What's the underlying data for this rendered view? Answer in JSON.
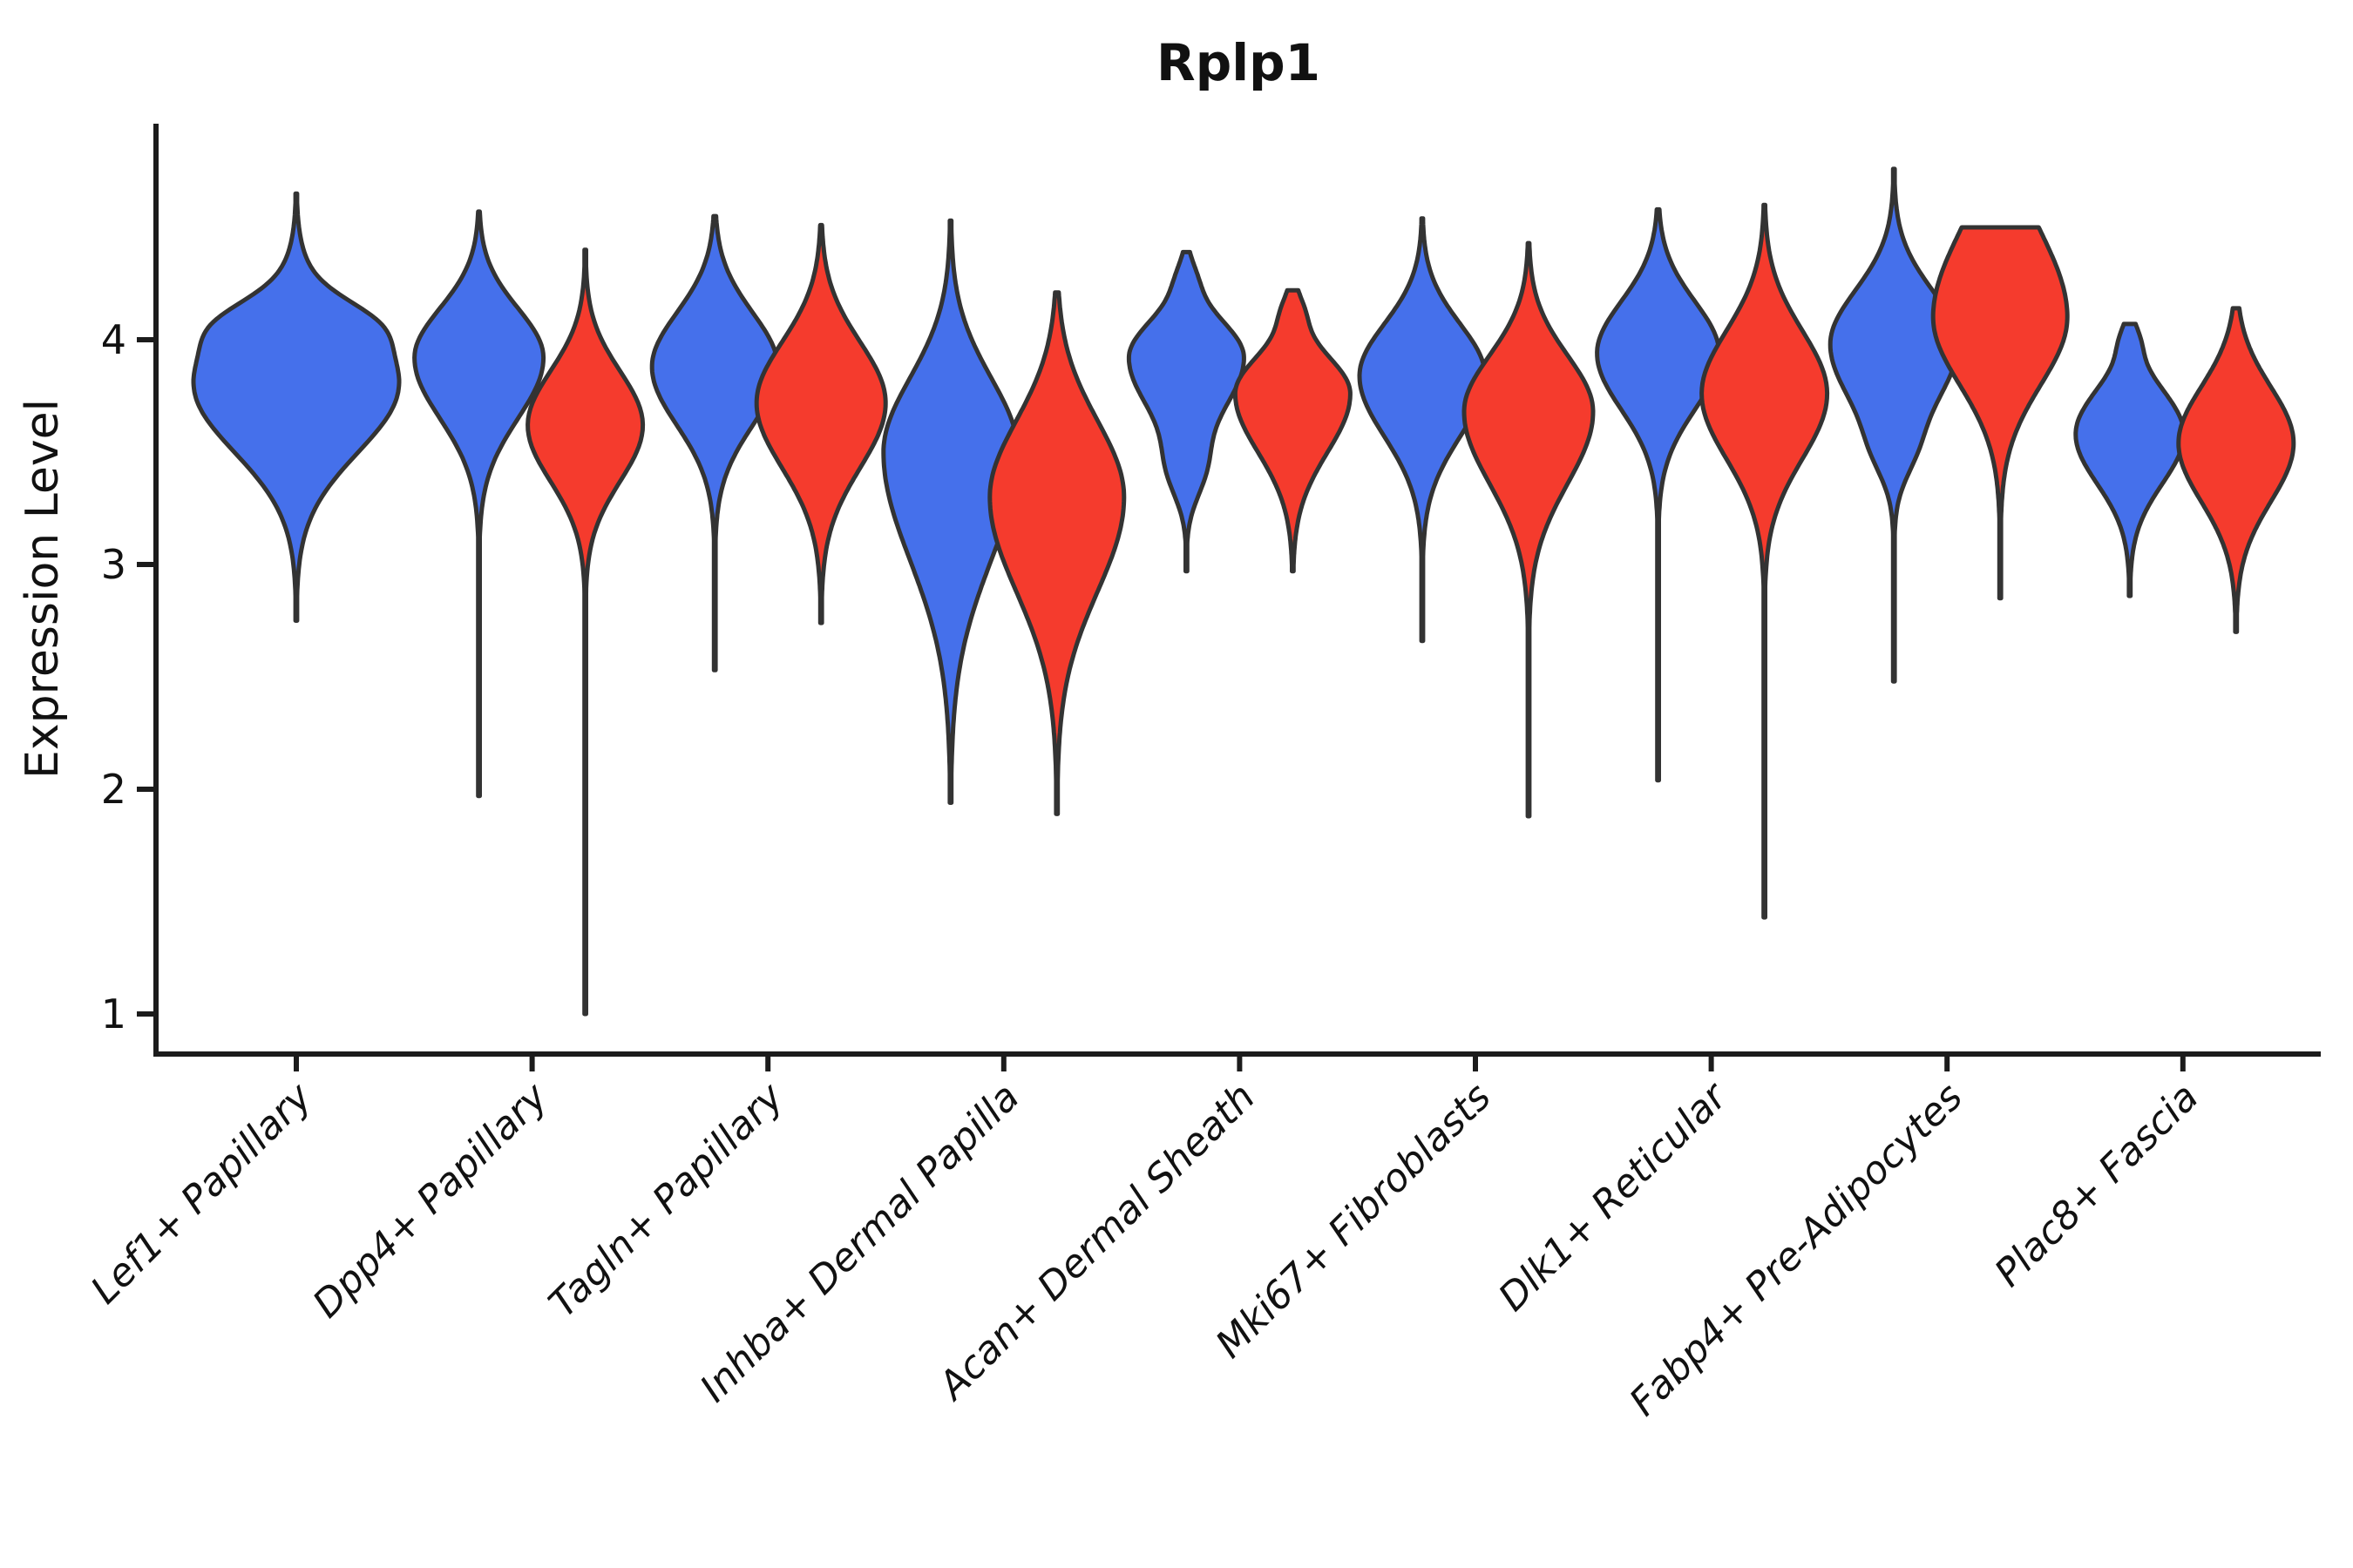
{
  "title": "Rplp1",
  "y_axis": {
    "label": "Expression Level",
    "ticks": [
      1,
      2,
      3,
      4
    ]
  },
  "x_axis": {
    "categories": [
      "Lef1+ Papillary",
      "Dpp4+ Papillary",
      "Tagln+ Papillary",
      "Inhba+ Dermal Papilla",
      "Acan+ Dermal Sheath",
      "Mki67+ Fibroblasts",
      "Dlk1+ Reticular",
      "Fabp4+ Pre-Adipocytes",
      "Plac8+ Fascia"
    ]
  },
  "colors": {
    "blue": "#4570EB",
    "red": "#F53B2D",
    "outline": "#333333",
    "axis": "#1c1c1c",
    "text": "#111111",
    "background": "#FFFFFF"
  },
  "chart_data": {
    "type": "violin",
    "title": "Rplp1",
    "ylabel": "Expression Level",
    "xlabel": "",
    "y_ticks": [
      1,
      2,
      3,
      4
    ],
    "ylim": [
      0.8,
      4.95
    ],
    "grid": false,
    "legend": "none",
    "categories": [
      "Lef1+ Papillary",
      "Dpp4+ Papillary",
      "Tagln+ Papillary",
      "Inhba+ Dermal Papilla",
      "Acan+ Dermal Sheath",
      "Mki67+ Fibroblasts",
      "Dlk1+ Reticular",
      "Fabp4+ Pre-Adipocytes",
      "Plac8+ Fascia"
    ],
    "series": [
      {
        "key": "blue",
        "color": "#4570EB"
      },
      {
        "key": "red",
        "color": "#F53B2D"
      }
    ],
    "violins": [
      {
        "c": 0,
        "s": "blue",
        "full": true,
        "min": 2.75,
        "max": 4.65,
        "peak": 3.8,
        "spread_lo": 0.3,
        "spread_hi": 0.26,
        "halfwidth": 118,
        "bumps": [
          [
            4.08,
            0.1,
            0.25
          ]
        ]
      },
      {
        "c": 1,
        "s": "blue",
        "full": false,
        "min": 1.97,
        "max": 4.57,
        "peak": 3.92,
        "spread_lo": 0.27,
        "spread_hi": 0.22,
        "halfwidth": 74,
        "bumps": []
      },
      {
        "c": 1,
        "s": "red",
        "full": false,
        "min": 1.0,
        "max": 4.4,
        "peak": 3.62,
        "spread_lo": 0.25,
        "spread_hi": 0.24,
        "halfwidth": 66,
        "bumps": []
      },
      {
        "c": 2,
        "s": "blue",
        "full": false,
        "min": 2.53,
        "max": 4.55,
        "peak": 3.88,
        "spread_lo": 0.26,
        "spread_hi": 0.24,
        "halfwidth": 72,
        "bumps": []
      },
      {
        "c": 2,
        "s": "red",
        "full": false,
        "min": 2.74,
        "max": 4.51,
        "peak": 3.72,
        "spread_lo": 0.29,
        "spread_hi": 0.27,
        "halfwidth": 74,
        "bumps": []
      },
      {
        "c": 3,
        "s": "blue",
        "full": false,
        "min": 1.94,
        "max": 4.53,
        "peak": 3.5,
        "spread_lo": 0.48,
        "spread_hi": 0.33,
        "halfwidth": 77,
        "bumps": []
      },
      {
        "c": 3,
        "s": "red",
        "full": false,
        "min": 1.89,
        "max": 4.21,
        "peak": 3.3,
        "spread_lo": 0.42,
        "spread_hi": 0.34,
        "halfwidth": 77,
        "bumps": []
      },
      {
        "c": 4,
        "s": "blue",
        "full": false,
        "min": 2.97,
        "max": 4.39,
        "peak": 3.92,
        "spread_lo": 0.24,
        "spread_hi": 0.17,
        "halfwidth": 66,
        "bumps": [
          [
            4.28,
            0.08,
            0.1
          ],
          [
            3.42,
            0.13,
            0.25
          ]
        ]
      },
      {
        "c": 4,
        "s": "red",
        "full": false,
        "min": 2.97,
        "max": 4.22,
        "peak": 3.76,
        "spread_lo": 0.26,
        "spread_hi": 0.17,
        "halfwidth": 66,
        "bumps": [
          [
            4.13,
            0.08,
            0.13
          ]
        ]
      },
      {
        "c": 5,
        "s": "blue",
        "full": false,
        "min": 2.66,
        "max": 4.54,
        "peak": 3.84,
        "spread_lo": 0.27,
        "spread_hi": 0.23,
        "halfwidth": 72,
        "bumps": []
      },
      {
        "c": 5,
        "s": "red",
        "full": false,
        "min": 1.88,
        "max": 4.43,
        "peak": 3.68,
        "spread_lo": 0.32,
        "spread_hi": 0.25,
        "halfwidth": 74,
        "bumps": []
      },
      {
        "c": 6,
        "s": "blue",
        "full": false,
        "min": 2.04,
        "max": 4.58,
        "peak": 3.94,
        "spread_lo": 0.25,
        "spread_hi": 0.23,
        "halfwidth": 70,
        "bumps": []
      },
      {
        "c": 6,
        "s": "red",
        "full": false,
        "min": 1.43,
        "max": 4.6,
        "peak": 3.76,
        "spread_lo": 0.29,
        "spread_hi": 0.28,
        "halfwidth": 72,
        "bumps": []
      },
      {
        "c": 7,
        "s": "blue",
        "full": false,
        "min": 2.48,
        "max": 4.76,
        "peak": 3.98,
        "spread_lo": 0.28,
        "spread_hi": 0.24,
        "halfwidth": 73,
        "bumps": [
          [
            3.5,
            0.12,
            0.15
          ]
        ]
      },
      {
        "c": 7,
        "s": "red",
        "full": false,
        "min": 2.85,
        "max": 4.5,
        "peak": 4.1,
        "spread_lo": 0.3,
        "spread_hi": 0.38,
        "halfwidth": 77,
        "bumps": []
      },
      {
        "c": 8,
        "s": "blue",
        "full": false,
        "min": 2.86,
        "max": 4.07,
        "peak": 3.58,
        "spread_lo": 0.22,
        "spread_hi": 0.2,
        "halfwidth": 62,
        "bumps": [
          [
            4.0,
            0.07,
            0.1
          ]
        ]
      },
      {
        "c": 8,
        "s": "red",
        "full": false,
        "min": 2.7,
        "max": 4.14,
        "peak": 3.54,
        "spread_lo": 0.26,
        "spread_hi": 0.25,
        "halfwidth": 66,
        "bumps": []
      }
    ]
  }
}
